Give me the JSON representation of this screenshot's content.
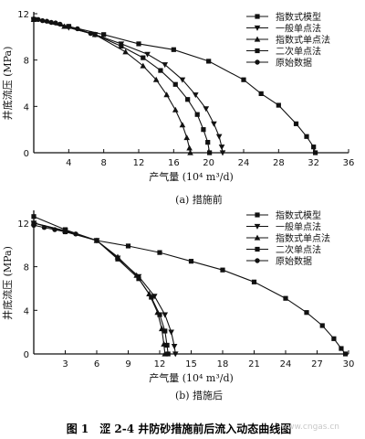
{
  "chart_data": [
    {
      "type": "line",
      "caption": "(a) 措施前",
      "xlabel": "产气量 (10⁴ m³/d)",
      "ylabel": "井底流压 (MPa)",
      "xlim": [
        0,
        36
      ],
      "ylim": [
        0,
        12
      ],
      "xticks": [
        4,
        8,
        12,
        16,
        20,
        24,
        28,
        32,
        36
      ],
      "yticks": [
        0,
        4,
        8,
        12
      ],
      "legend_position": "top-right",
      "series": [
        {
          "name": "指数式模型",
          "marker": "square",
          "x": [
            0,
            4,
            8,
            12,
            16,
            20,
            24,
            26,
            28,
            30,
            31.2,
            32,
            32.2
          ],
          "y": [
            11.5,
            10.9,
            10.2,
            9.4,
            8.9,
            7.9,
            6.3,
            5.1,
            4.1,
            2.5,
            1.4,
            0.5,
            0
          ]
        },
        {
          "name": "一般单点法",
          "marker": "triangle-down",
          "x": [
            0,
            4,
            7,
            10,
            13,
            15,
            17,
            18.5,
            19.7,
            20.6,
            21.2,
            21.5,
            21.6
          ],
          "y": [
            11.5,
            10.8,
            10.2,
            9.4,
            8.5,
            7.6,
            6.3,
            5.0,
            3.8,
            2.5,
            1.4,
            0.5,
            0
          ]
        },
        {
          "name": "指数式单点法",
          "marker": "triangle-up",
          "x": [
            0,
            3.5,
            7,
            10.5,
            12.5,
            14,
            15.2,
            16.2,
            17,
            17.5,
            17.8,
            17.9
          ],
          "y": [
            11.5,
            10.9,
            10.2,
            8.7,
            7.5,
            6.3,
            5.0,
            3.7,
            2.4,
            1.3,
            0.4,
            0
          ]
        },
        {
          "name": "二次单点法",
          "marker": "square",
          "x": [
            0,
            4,
            7,
            10,
            12.5,
            14.5,
            16.2,
            17.6,
            18.7,
            19.4,
            19.9,
            20.1
          ],
          "y": [
            11.5,
            10.9,
            10.2,
            9.2,
            8.2,
            7.1,
            5.9,
            4.6,
            3.3,
            2.0,
            0.9,
            0
          ]
        },
        {
          "name": "原始数据",
          "marker": "circle",
          "x": [
            0,
            0.5,
            1.0,
            1.5,
            2.0,
            2.5,
            3.0,
            4.0,
            5.0,
            6.5
          ],
          "y": [
            11.55,
            11.5,
            11.4,
            11.35,
            11.25,
            11.2,
            11.1,
            10.9,
            10.7,
            10.3
          ]
        }
      ]
    },
    {
      "type": "line",
      "caption": "(b) 措施后",
      "xlabel": "产气量 (10⁴ m³/d)",
      "ylabel": "井底流压 (MPa)",
      "xlim": [
        0,
        30
      ],
      "ylim": [
        0,
        13
      ],
      "xticks": [
        3,
        6,
        9,
        12,
        15,
        18,
        21,
        24,
        27,
        30
      ],
      "yticks": [
        0,
        4,
        8,
        12
      ],
      "legend_position": "top-right",
      "series": [
        {
          "name": "指数式模型",
          "marker": "square",
          "x": [
            0,
            3,
            6,
            9,
            12,
            15,
            18,
            21,
            24,
            26,
            27.5,
            28.6,
            29.3,
            29.7
          ],
          "y": [
            12.0,
            11.2,
            10.4,
            9.9,
            9.3,
            8.5,
            7.7,
            6.6,
            5.1,
            3.8,
            2.6,
            1.4,
            0.5,
            0
          ]
        },
        {
          "name": "一般单点法",
          "marker": "triangle-down",
          "x": [
            0,
            3,
            6,
            8,
            10,
            11.5,
            12.5,
            13.1,
            13.4,
            13.5
          ],
          "y": [
            12.0,
            11.3,
            10.4,
            8.8,
            7.1,
            5.3,
            3.6,
            2.0,
            0.7,
            0
          ]
        },
        {
          "name": "指数式单点法",
          "marker": "triangle-up",
          "x": [
            0,
            3,
            6,
            8,
            9.8,
            11.0,
            11.8,
            12.2,
            12.4,
            12.5
          ],
          "y": [
            12.0,
            11.3,
            10.4,
            8.9,
            7.2,
            5.5,
            3.8,
            2.3,
            0.9,
            0
          ]
        },
        {
          "name": "二次单点法",
          "marker": "square",
          "x": [
            0,
            3,
            6,
            8,
            10,
            11.2,
            12.0,
            12.5,
            12.7,
            12.8
          ],
          "y": [
            12.6,
            11.4,
            10.4,
            8.7,
            6.9,
            5.2,
            3.6,
            2.1,
            0.8,
            0
          ]
        },
        {
          "name": "原始数据",
          "marker": "circle",
          "x": [
            0,
            1,
            2,
            3,
            4
          ],
          "y": [
            11.8,
            11.6,
            11.4,
            11.2,
            11.0
          ]
        }
      ]
    }
  ],
  "figure_caption": "图 1　涩 2-4 井防砂措施前后流入动态曲线图",
  "watermark": "www.cngas.cn"
}
